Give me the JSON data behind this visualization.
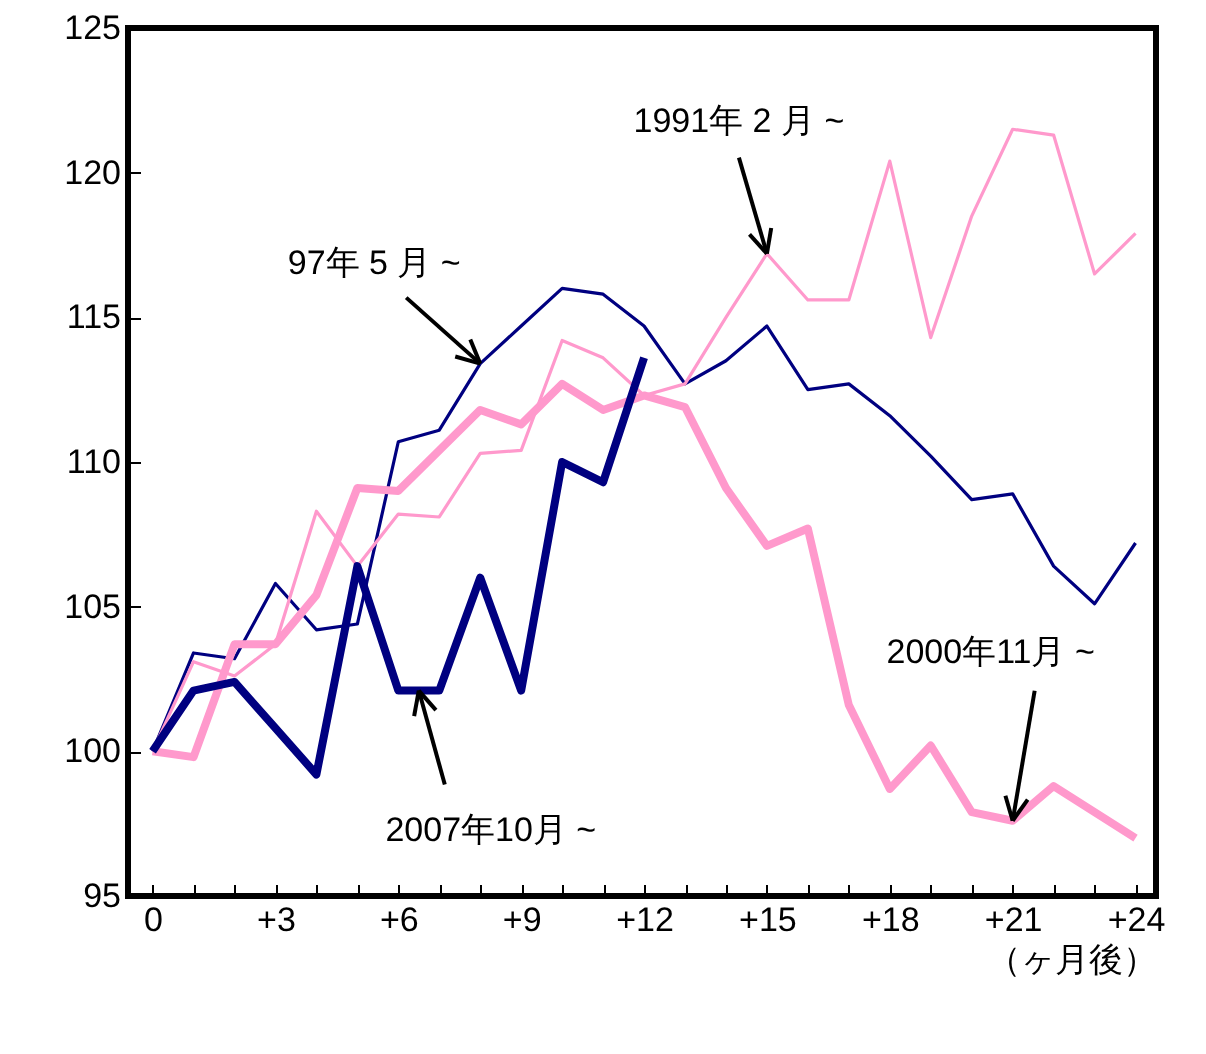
{
  "chart_data": {
    "type": "line",
    "x": [
      0,
      1,
      2,
      3,
      4,
      5,
      6,
      7,
      8,
      9,
      10,
      11,
      12,
      13,
      14,
      15,
      16,
      17,
      18,
      19,
      20,
      21,
      22,
      23,
      24
    ],
    "series": [
      {
        "color": "#000080",
        "values": [
          100,
          103.4,
          103.2,
          105.8,
          104.2,
          104.4,
          110.7,
          111.1,
          113.4,
          114.7,
          116.0,
          115.8,
          114.7,
          112.7,
          113.5,
          114.7,
          112.5,
          112.7,
          111.6,
          110.2,
          108.7,
          108.9,
          106.4,
          105.1,
          107.2
        ]
      },
      {
        "color": "#ff99cc",
        "values": [
          100,
          103.1,
          102.6,
          103.7,
          108.3,
          106.4,
          108.2,
          108.1,
          110.3,
          110.4,
          114.2,
          113.6,
          112.3,
          112.7,
          115.0,
          117.2,
          115.6,
          115.6,
          120.4,
          114.3,
          118.5,
          121.5,
          121.3,
          116.5,
          117.9
        ]
      },
      {
        "color": "#ff99cc",
        "values": [
          100,
          99.8,
          103.7,
          103.7,
          105.4,
          109.1,
          109.0,
          110.4,
          111.8,
          111.3,
          112.7,
          111.8,
          112.3,
          111.9,
          109.1,
          107.1,
          107.7,
          101.6,
          98.7,
          100.2,
          97.9,
          97.6,
          98.8,
          97.9,
          97.0
        ]
      },
      {
        "color": "#000080",
        "values": [
          100,
          102.1,
          102.4,
          100.8,
          99.2,
          106.4,
          102.1,
          102.1,
          106.0,
          102.1,
          110.0,
          109.3,
          113.6,
          null,
          null,
          null,
          null,
          null,
          null,
          null,
          null,
          null,
          null,
          null,
          null
        ]
      }
    ],
    "xlabel": "（ヶ月後）",
    "xlim": [
      -0.6,
      24.5
    ],
    "xticks": [
      0,
      {
        "value": 1,
        "label": null
      },
      {
        "value": 2,
        "label": null
      },
      {
        "value": 3,
        "label": "+3"
      },
      {
        "value": 4,
        "label": null
      },
      {
        "value": 5,
        "label": null
      },
      {
        "value": 6,
        "label": "+6"
      },
      {
        "value": 7,
        "label": null
      },
      {
        "value": 8,
        "label": null
      },
      {
        "value": 9,
        "label": "+9"
      },
      {
        "value": 10,
        "label": null
      },
      {
        "value": 11,
        "label": null
      },
      {
        "value": 12,
        "label": "+12"
      },
      {
        "value": 13,
        "label": null
      },
      {
        "value": 14,
        "label": null
      },
      {
        "value": 15,
        "label": "+15"
      },
      {
        "value": 16,
        "label": null
      },
      {
        "value": 17,
        "label": null
      },
      {
        "value": 18,
        "label": "+18"
      },
      {
        "value": 19,
        "label": null
      },
      {
        "value": 20,
        "label": null
      },
      {
        "value": 21,
        "label": "+21"
      },
      {
        "value": 22,
        "label": null
      },
      {
        "value": 23,
        "label": null
      },
      {
        "value": 24,
        "label": "+24"
      }
    ],
    "ylim": [
      95,
      125
    ],
    "yticks": [
      95,
      100,
      105,
      110,
      115,
      120,
      125
    ],
    "annotations": [
      {
        "text": "97年 5 月 ~",
        "x": 8,
        "y": 113.4
      },
      {
        "text": "1991年 2 月 ~",
        "x": 15,
        "y": 117.2
      },
      {
        "text": "2007年10月 ~",
        "x": 6.5,
        "y": 102.1
      },
      {
        "text": "2000年11月 ~",
        "x": 21,
        "y": 97.6
      }
    ]
  }
}
